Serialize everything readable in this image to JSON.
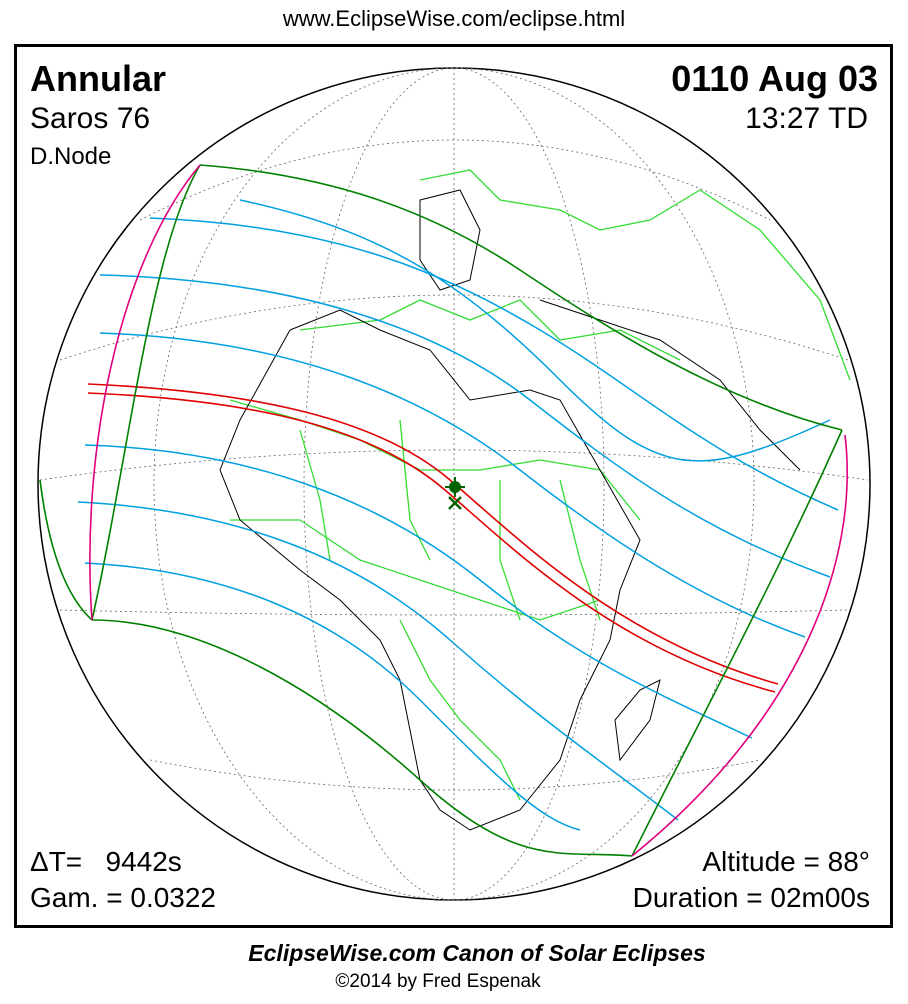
{
  "header_url": "www.EclipseWise.com/eclipse.html",
  "eclipse_type": "Annular",
  "saros": "Saros  76",
  "node": "D.Node",
  "date": "0110 Aug 03",
  "time": "13:27 TD",
  "delta_t": "ΔT=   9442s",
  "gamma": "Gam. = 0.0322",
  "altitude": "Altitude = 88°",
  "duration": "Duration = 02m00s",
  "footer_title": "EclipseWise.com Canon of Solar Eclipses",
  "footer_copyright": "©2014 by Fred Espenak",
  "colors": {
    "central_path": "#e00000",
    "penumbral_limits": "#008000",
    "magnitude_lines": "#00a0e0",
    "rise_set": "#e0007f",
    "borders": "#33dd33"
  },
  "icons": {
    "greatest_eclipse": "sun-marker-icon",
    "greatest_duration": "x-marker-icon"
  }
}
